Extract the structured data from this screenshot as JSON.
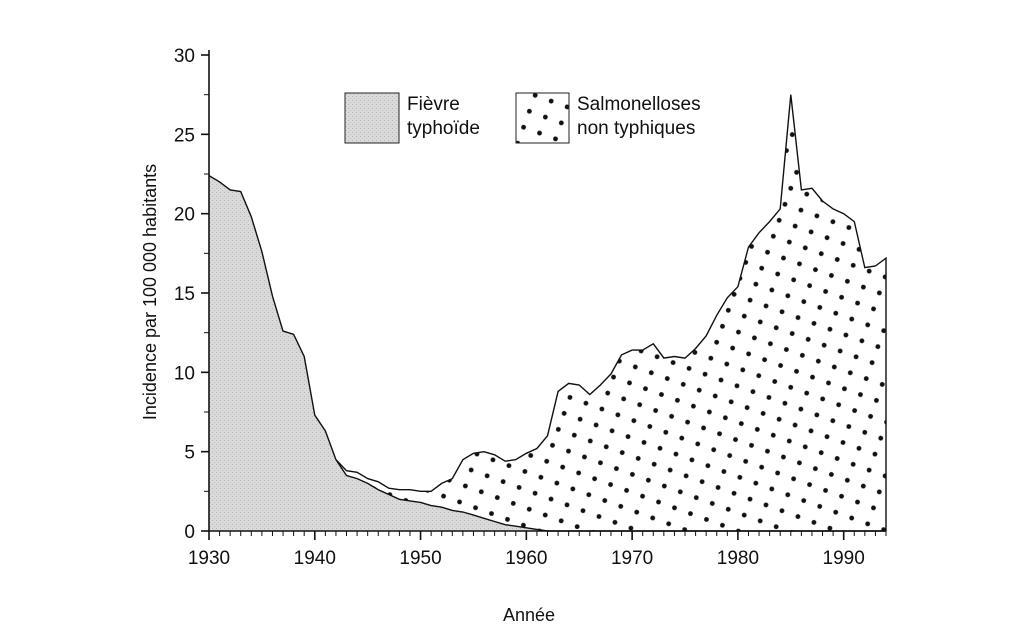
{
  "chart_data": {
    "type": "area",
    "title": "",
    "xlabel": "Année",
    "ylabel": "Incidence par 100 000 habitants",
    "xlim": [
      1930,
      1994
    ],
    "ylim": [
      0,
      30
    ],
    "x_ticks": [
      "1930",
      "1940",
      "1950",
      "1960",
      "1970",
      "1980",
      "1990"
    ],
    "y_ticks": [
      "0",
      "5",
      "10",
      "15",
      "20",
      "25",
      "30"
    ],
    "legend_position": "top",
    "colors": {
      "typhoid_fill": "#d4d4d4",
      "salmonella_dots": "#111111",
      "line": "#111111"
    },
    "series": [
      {
        "name": "Fièvre typhoïde",
        "name_lines": [
          "Fièvre",
          "typhoïde"
        ],
        "pattern": "light-gray",
        "points": [
          [
            1930,
            22.4
          ],
          [
            1931,
            22.0
          ],
          [
            1932,
            21.5
          ],
          [
            1933,
            21.4
          ],
          [
            1934,
            19.8
          ],
          [
            1935,
            17.6
          ],
          [
            1936,
            14.8
          ],
          [
            1937,
            12.6
          ],
          [
            1938,
            12.4
          ],
          [
            1939,
            11.0
          ],
          [
            1940,
            7.3
          ],
          [
            1941,
            6.3
          ],
          [
            1942,
            4.5
          ],
          [
            1943,
            3.5
          ],
          [
            1944,
            3.3
          ],
          [
            1945,
            3.0
          ],
          [
            1946,
            2.6
          ],
          [
            1947,
            2.3
          ],
          [
            1948,
            2.0
          ],
          [
            1949,
            1.9
          ],
          [
            1950,
            1.8
          ],
          [
            1951,
            1.6
          ],
          [
            1952,
            1.5
          ],
          [
            1953,
            1.3
          ],
          [
            1954,
            1.2
          ],
          [
            1955,
            1.0
          ],
          [
            1956,
            0.8
          ],
          [
            1957,
            0.6
          ],
          [
            1958,
            0.4
          ],
          [
            1959,
            0.3
          ],
          [
            1960,
            0.2
          ],
          [
            1961,
            0.1
          ],
          [
            1962,
            0.0
          ],
          [
            1994,
            0.0
          ]
        ]
      },
      {
        "name": "Salmonelloses non typhiques",
        "name_lines": [
          "Salmonelloses",
          "non typhiques"
        ],
        "pattern": "dots",
        "points": [
          [
            1942,
            4.5
          ],
          [
            1943,
            3.8
          ],
          [
            1944,
            3.7
          ],
          [
            1945,
            3.3
          ],
          [
            1946,
            3.1
          ],
          [
            1947,
            2.7
          ],
          [
            1948,
            2.6
          ],
          [
            1949,
            2.6
          ],
          [
            1950,
            2.5
          ],
          [
            1951,
            2.5
          ],
          [
            1952,
            3.0
          ],
          [
            1953,
            3.3
          ],
          [
            1954,
            4.5
          ],
          [
            1955,
            4.9
          ],
          [
            1956,
            5.0
          ],
          [
            1957,
            4.8
          ],
          [
            1958,
            4.4
          ],
          [
            1959,
            4.5
          ],
          [
            1960,
            4.9
          ],
          [
            1961,
            5.2
          ],
          [
            1962,
            6.0
          ],
          [
            1963,
            8.8
          ],
          [
            1964,
            9.3
          ],
          [
            1965,
            9.2
          ],
          [
            1966,
            8.6
          ],
          [
            1967,
            9.2
          ],
          [
            1968,
            9.9
          ],
          [
            1969,
            11.1
          ],
          [
            1970,
            11.4
          ],
          [
            1971,
            11.4
          ],
          [
            1972,
            11.8
          ],
          [
            1973,
            10.9
          ],
          [
            1974,
            11.0
          ],
          [
            1975,
            10.9
          ],
          [
            1976,
            11.5
          ],
          [
            1977,
            12.3
          ],
          [
            1978,
            13.6
          ],
          [
            1979,
            14.7
          ],
          [
            1980,
            15.4
          ],
          [
            1981,
            17.9
          ],
          [
            1982,
            18.8
          ],
          [
            1983,
            19.5
          ],
          [
            1984,
            20.3
          ],
          [
            1985,
            27.5
          ],
          [
            1986,
            21.5
          ],
          [
            1987,
            21.6
          ],
          [
            1988,
            20.8
          ],
          [
            1989,
            20.3
          ],
          [
            1990,
            20.0
          ],
          [
            1991,
            19.5
          ],
          [
            1992,
            16.6
          ],
          [
            1993,
            16.7
          ],
          [
            1994,
            17.2
          ]
        ]
      }
    ]
  }
}
